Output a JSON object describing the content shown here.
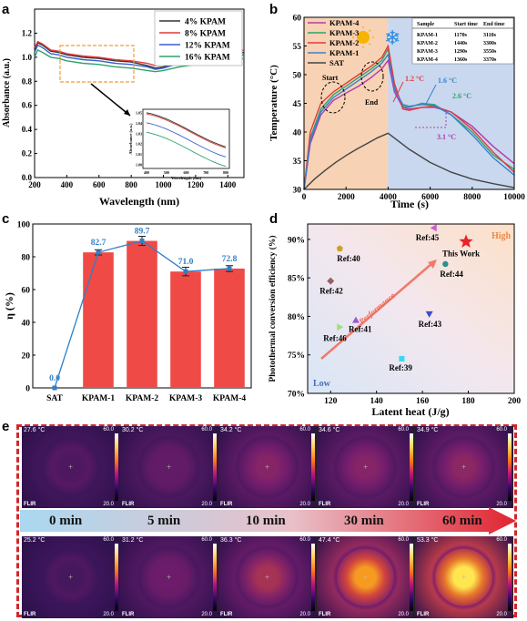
{
  "panels": {
    "a": "a",
    "b": "b",
    "c": "c",
    "d": "d",
    "e": "e"
  },
  "chart_data": [
    {
      "panel": "a",
      "type": "line",
      "xlabel": "Wavelength (nm)",
      "ylabel": "Absorbance (a.u.)",
      "xlim": [
        200,
        1500
      ],
      "ylim": [
        0.0,
        1.4
      ],
      "xticks": [
        200,
        400,
        600,
        800,
        1000,
        1200,
        1400
      ],
      "yticks": [
        0.0,
        0.2,
        0.4,
        0.6,
        0.8,
        1.0,
        1.2
      ],
      "legend_position": "top-right",
      "series": [
        {
          "name": "4%   KPAM",
          "color": "#333333",
          "x": [
            200,
            220,
            250,
            300,
            350,
            400,
            500,
            600,
            700,
            800,
            900,
            950,
            1000,
            1100,
            1200,
            1300,
            1400,
            1500
          ],
          "y": [
            1.05,
            1.12,
            1.1,
            1.05,
            1.04,
            1.02,
            1.0,
            0.99,
            0.97,
            0.96,
            0.93,
            0.91,
            0.92,
            0.96,
            0.99,
            1.0,
            1.01,
            1.04
          ]
        },
        {
          "name": "8%   KPAM",
          "color": "#e23a3a",
          "x": [
            200,
            220,
            250,
            300,
            350,
            400,
            500,
            600,
            700,
            800,
            900,
            950,
            1000,
            1100,
            1200,
            1300,
            1400,
            1500
          ],
          "y": [
            1.08,
            1.13,
            1.11,
            1.06,
            1.05,
            1.03,
            1.01,
            1.0,
            0.98,
            0.97,
            0.95,
            0.93,
            0.94,
            0.98,
            1.01,
            1.02,
            1.03,
            1.06
          ]
        },
        {
          "name": "12% KPAM",
          "color": "#3a5fcf",
          "x": [
            200,
            220,
            250,
            300,
            350,
            400,
            500,
            600,
            700,
            800,
            900,
            950,
            1000,
            1100,
            1200,
            1300,
            1400,
            1500
          ],
          "y": [
            1.04,
            1.1,
            1.08,
            1.03,
            1.02,
            1.0,
            0.98,
            0.97,
            0.95,
            0.94,
            0.92,
            0.9,
            0.91,
            0.95,
            0.97,
            0.98,
            0.99,
            1.02
          ]
        },
        {
          "name": "16% KPAM",
          "color": "#2ea36a",
          "x": [
            200,
            220,
            250,
            300,
            350,
            400,
            500,
            600,
            700,
            800,
            900,
            950,
            1000,
            1100,
            1200,
            1300,
            1400,
            1500
          ],
          "y": [
            1.0,
            1.06,
            1.04,
            1.0,
            0.99,
            0.97,
            0.95,
            0.94,
            0.92,
            0.91,
            0.89,
            0.88,
            0.89,
            0.92,
            0.94,
            0.95,
            0.96,
            0.99
          ]
        }
      ],
      "inset": {
        "xticks": [
          400,
          500,
          600,
          700,
          800
        ],
        "xlabel": "Wavelength (nm)",
        "ylabel": "Absorbance (a.u.)",
        "yticks": [
          1.0,
          1.01,
          1.02,
          1.03,
          1.04,
          1.05
        ]
      }
    },
    {
      "panel": "b",
      "type": "line",
      "xlabel": "Time (s)",
      "ylabel": "Temperature (°C)",
      "xlim": [
        0,
        10000
      ],
      "ylim": [
        30,
        60
      ],
      "xticks": [
        0,
        2000,
        4000,
        6000,
        8000,
        10000
      ],
      "yticks": [
        30,
        35,
        40,
        45,
        50,
        55,
        60
      ],
      "legend_position": "top-left",
      "series": [
        {
          "name": "KPAM-4",
          "color": "#b23ab0",
          "x": [
            0,
            300,
            800,
            1400,
            2000,
            2600,
            3200,
            3700,
            4000,
            4300,
            4700,
            5000,
            5600,
            6200,
            7000,
            8000,
            9000,
            10000
          ],
          "y": [
            30,
            38,
            43,
            45.5,
            46.8,
            48,
            49.5,
            51,
            52.5,
            47,
            44.3,
            44.0,
            44.3,
            44.3,
            43.5,
            41,
            37.5,
            34.5
          ]
        },
        {
          "name": "KPAM-3",
          "color": "#2ea36a",
          "x": [
            0,
            300,
            800,
            1400,
            2000,
            2600,
            3200,
            3700,
            4000,
            4300,
            4700,
            5000,
            5600,
            6200,
            7000,
            8000,
            9000,
            10000
          ],
          "y": [
            30,
            39,
            44,
            46.5,
            48,
            49.5,
            51,
            52.5,
            54.5,
            48,
            44.5,
            44.3,
            45.0,
            44.8,
            43,
            40,
            36,
            33.5
          ]
        },
        {
          "name": "KPAM-2",
          "color": "#e23a3a",
          "x": [
            0,
            300,
            800,
            1400,
            2000,
            2600,
            3200,
            3700,
            4000,
            4300,
            4700,
            5000,
            5600,
            6200,
            7000,
            8000,
            9000,
            10000
          ],
          "y": [
            30,
            40,
            45,
            47,
            48.5,
            50,
            51.5,
            53,
            55,
            48.5,
            44.0,
            43.8,
            44.3,
            44.5,
            43.5,
            40.5,
            36.5,
            33
          ]
        },
        {
          "name": "KPAM-1",
          "color": "#3a7fd0",
          "x": [
            0,
            300,
            800,
            1400,
            2000,
            2600,
            3200,
            3700,
            4000,
            4300,
            4700,
            5000,
            5600,
            6200,
            7000,
            8000,
            9000,
            10000
          ],
          "y": [
            30,
            38.5,
            43.5,
            46,
            47.5,
            49,
            50.5,
            52,
            53.5,
            47.5,
            44.8,
            44.5,
            44.8,
            44.6,
            43,
            39.5,
            35.5,
            32.5
          ]
        },
        {
          "name": "SAT",
          "color": "#444444",
          "x": [
            0,
            500,
            1000,
            1500,
            2000,
            2500,
            3000,
            3500,
            4000,
            4500,
            5000,
            6000,
            7000,
            8000,
            9000,
            10000
          ],
          "y": [
            30,
            31.8,
            33.3,
            34.7,
            35.9,
            37,
            38,
            39,
            39.8,
            38.4,
            37,
            34.7,
            33,
            31.8,
            31,
            30.3
          ]
        }
      ],
      "annotations": [
        "Start",
        "End",
        "1.2 °C",
        "1.6 °C",
        "2.6 °C",
        "3.1 °C"
      ],
      "table": {
        "headers": [
          "Sample",
          "Start time",
          "End time"
        ],
        "rows": [
          [
            "KPAM-1",
            "1170s",
            "3110s"
          ],
          [
            "KPAM-2",
            "1440s",
            "3300s"
          ],
          [
            "KPAM-3",
            "1290s",
            "3550s"
          ],
          [
            "KPAM-4",
            "1360s",
            "3370s"
          ]
        ]
      },
      "colors": {
        "heat_bg": "#f8d2b4",
        "cool_bg": "#c9d8ee"
      }
    },
    {
      "panel": "c",
      "type": "bar",
      "xlabel": "",
      "ylabel": "η (%)",
      "ylim": [
        0,
        100
      ],
      "yticks": [
        0,
        20,
        40,
        60,
        80,
        100
      ],
      "categories": [
        "SAT",
        "KPAM-1",
        "KPAM-2",
        "KPAM-3",
        "KPAM-4"
      ],
      "values": [
        0.0,
        82.7,
        89.7,
        71.0,
        72.8
      ],
      "value_labels": [
        "0.0",
        "82.7",
        "89.7",
        "71.0",
        "72.8"
      ],
      "errors": [
        0,
        1.6,
        2.8,
        2.6,
        1.8
      ],
      "bar_color": "#f04a46",
      "line_color": "#2f7fc8"
    },
    {
      "panel": "d",
      "type": "scatter",
      "xlabel": "Latent heat (J/g)",
      "ylabel": "Photothermal conversion efficiency (%)",
      "xlim": [
        110,
        200
      ],
      "ylim": [
        70,
        92
      ],
      "xticks": [
        120,
        140,
        160,
        180,
        200
      ],
      "yticks": [
        70,
        75,
        80,
        85,
        90
      ],
      "ytick_labels": [
        "70%",
        "75%",
        "80%",
        "85%",
        "90%"
      ],
      "points": [
        {
          "label": "Ref:40",
          "x": 124,
          "y": 88.8,
          "color": "#c9a326",
          "marker": "pentagon"
        },
        {
          "label": "Ref:45",
          "x": 165,
          "y": 91.5,
          "color": "#d25ad0",
          "marker": "tri-left"
        },
        {
          "label": "This Work",
          "x": 179,
          "y": 89.7,
          "color": "#e8242a",
          "marker": "star"
        },
        {
          "label": "Ref:44",
          "x": 170,
          "y": 86.8,
          "color": "#2b8f8f",
          "marker": "circle"
        },
        {
          "label": "Ref:42",
          "x": 120,
          "y": 84.6,
          "color": "#9a6060",
          "marker": "diamond"
        },
        {
          "label": "Ref:46",
          "x": 124,
          "y": 78.6,
          "color": "#9fe07a",
          "marker": "tri-right"
        },
        {
          "label": "Ref:41",
          "x": 131,
          "y": 79.5,
          "color": "#9a5ad2",
          "marker": "triangle"
        },
        {
          "label": "Ref:43",
          "x": 163,
          "y": 80.3,
          "color": "#3a4fc8",
          "marker": "tri-down"
        },
        {
          "label": "Ref:39",
          "x": 151,
          "y": 74.5,
          "color": "#3ad8f0",
          "marker": "square"
        }
      ],
      "annotations": {
        "high": "High",
        "low": "Low",
        "arrow": "Performance"
      }
    },
    {
      "panel": "e",
      "type": "table",
      "time_labels": [
        "0 min",
        "5 min",
        "10 min",
        "30 min",
        "60 min"
      ],
      "row1_temps": [
        "27.6 °C",
        "30.2 °C",
        "34.2 °C",
        "34.6 °C",
        "34.9 °C"
      ],
      "row2_temps": [
        "25.2 °C",
        "31.2 °C",
        "36.3 °C",
        "47.4 °C",
        "53.3 °C"
      ],
      "row1_level": [
        0.05,
        0.15,
        0.3,
        0.3,
        0.32
      ],
      "row2_level": [
        0.0,
        0.2,
        0.4,
        0.75,
        0.95
      ],
      "scale_max": "60.0",
      "scale_min": "20.0",
      "brand": "FLIR"
    }
  ]
}
